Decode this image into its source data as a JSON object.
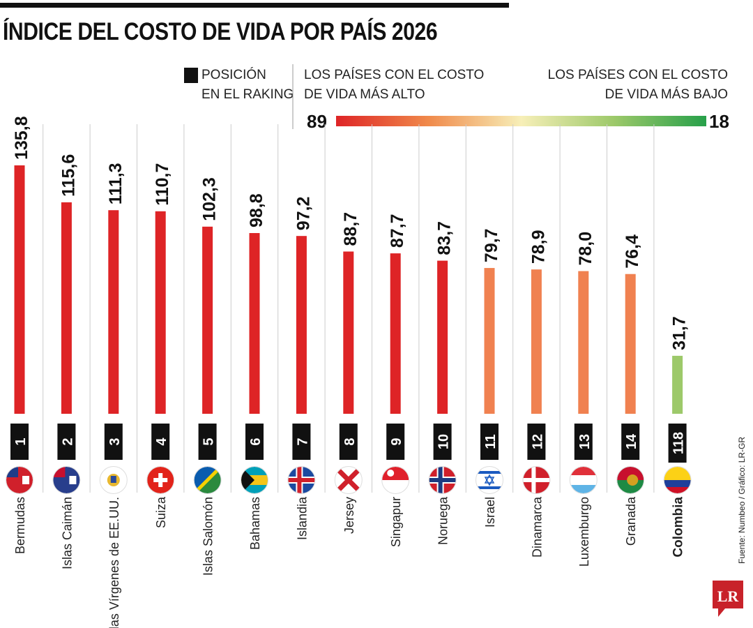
{
  "title": "ÍNDICE DEL COSTO DE VIDA POR PAÍS 2026",
  "legend": {
    "rank_label_1": "POSICIÓN",
    "rank_label_2": "EN EL RAKING",
    "high_label_1": "LOS PAÍSES CON EL COSTO",
    "high_label_2": "DE VIDA MÁS ALTO",
    "low_label_1": "LOS PAÍSES CON EL COSTO",
    "low_label_2": "DE VIDA MÁS BAJO",
    "scale_max": "89",
    "scale_min": "18",
    "gradient_colors": [
      "#de2426",
      "#f08a4b",
      "#f7efb8",
      "#9dc96a",
      "#27a04a"
    ]
  },
  "source": "Fuente: Numbeo / Gráfico: LR-GR",
  "logo": "LR",
  "colors": {
    "red": "#de2426",
    "orange": "#f08150",
    "green": "#9dc96a",
    "rank_box": "#111111"
  },
  "chart_data": {
    "type": "bar",
    "title": "ÍNDICE DEL COSTO DE VIDA POR PAÍS 2026",
    "categories": [
      "Bermudas",
      "Islas Caimán",
      "Islas Vírgenes de EE.UU.",
      "Suiza",
      "Islas Salomón",
      "Bahamas",
      "Islandia",
      "Jersey",
      "Singapur",
      "Noruega",
      "Israel",
      "Dinamarca",
      "Luxemburgo",
      "Granada",
      "Colombia"
    ],
    "values": [
      135.8,
      115.6,
      111.3,
      110.7,
      102.3,
      98.8,
      97.2,
      88.7,
      87.7,
      83.7,
      79.7,
      78.9,
      78.0,
      76.4,
      31.7
    ],
    "value_labels": [
      "135,8",
      "115,6",
      "111,3",
      "110,7",
      "102,3",
      "98,8",
      "97,2",
      "88,7",
      "87,7",
      "83,7",
      "79,7",
      "78,9",
      "78,0",
      "76,4",
      "31,7"
    ],
    "ranks": [
      "1",
      "2",
      "3",
      "4",
      "5",
      "6",
      "7",
      "8",
      "9",
      "10",
      "11",
      "12",
      "13",
      "14",
      "118"
    ],
    "bar_colors": [
      "red",
      "red",
      "red",
      "red",
      "red",
      "red",
      "red",
      "red",
      "red",
      "red",
      "orange",
      "orange",
      "orange",
      "orange",
      "green"
    ],
    "flags": [
      "bermuda-flag-icon",
      "cayman-islands-flag-icon",
      "us-virgin-islands-flag-icon",
      "switzerland-flag-icon",
      "solomon-islands-flag-icon",
      "bahamas-flag-icon",
      "iceland-flag-icon",
      "jersey-flag-icon",
      "singapore-flag-icon",
      "norway-flag-icon",
      "israel-flag-icon",
      "denmark-flag-icon",
      "luxembourg-flag-icon",
      "grenada-flag-icon",
      "colombia-flag-icon"
    ],
    "orientation": "vertical",
    "grid": false,
    "ylim": [
      0,
      140
    ]
  }
}
